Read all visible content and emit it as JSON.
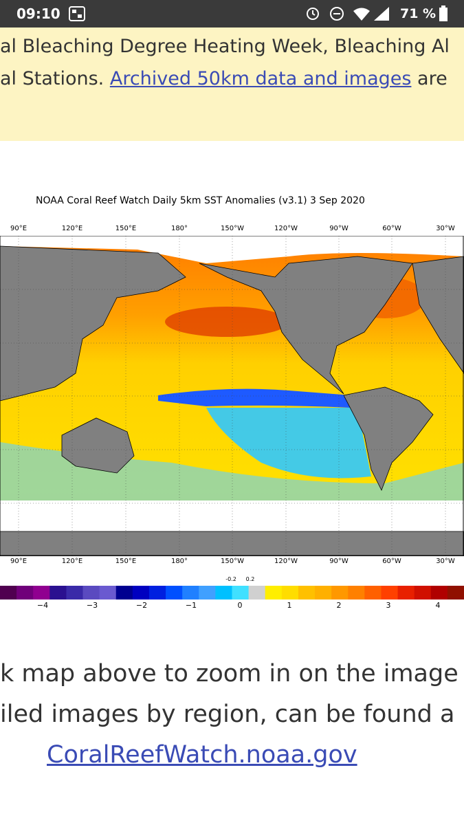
{
  "status_bar": {
    "time": "09:10",
    "battery": "71 %"
  },
  "banner": {
    "line1": "al Bleaching Degree Heating Week, Bleaching Al",
    "line2_prefix": "al Stations. ",
    "line2_link": "Archived 50km data and images",
    "line2_suffix": " are"
  },
  "map": {
    "title": "NOAA Coral Reef Watch Daily 5km SST Anomalies  (v3.1)    3 Sep 2020",
    "longitudes": [
      "90°E",
      "120°E",
      "150°E",
      "180°",
      "150°W",
      "120°W",
      "90°W",
      "60°W",
      "30°W"
    ],
    "colorbar_ticks": [
      "−4",
      "−3",
      "−2",
      "−1",
      "0",
      "1",
      "2",
      "3",
      "4"
    ],
    "colorbar_minor": [
      "-0.2",
      "0.2"
    ]
  },
  "body": {
    "line1": "k map above to zoom in on the image",
    "line2": "iled images by region, can be found a",
    "link": "CoralReefWatch.noaa.gov"
  }
}
